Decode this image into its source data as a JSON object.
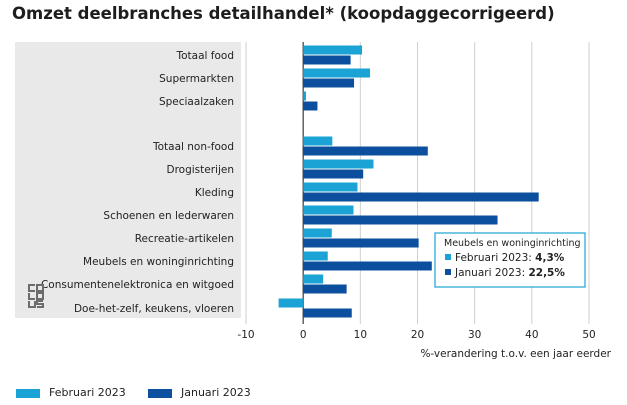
{
  "chart_data": {
    "type": "bar",
    "orientation": "horizontal",
    "title": "Omzet deelbranches detailhandel* (koopdaggecorrigeerd)",
    "xlabel": "%-verandering t.o.v. een jaar eerder",
    "ylabel": "",
    "xlim": [
      -10,
      50
    ],
    "xticks": [
      -10,
      0,
      10,
      20,
      30,
      40,
      50
    ],
    "grid": true,
    "categories": [
      "Totaal food",
      "Supermarkten",
      "Speciaalzaken",
      "",
      "Totaal non-food",
      "Drogisterijen",
      "Kleding",
      "Schoenen en lederwaren",
      "Recreatie-artikelen",
      "Meubels en woninginrichting",
      "Consumentenelektronica en witgoed",
      "Doe-het-zelf, keukens, vloeren"
    ],
    "series": [
      {
        "name": "Februari 2023",
        "color": "#1aa3d4",
        "values": [
          10.3,
          11.7,
          0.5,
          null,
          5.1,
          12.3,
          9.5,
          8.8,
          5.0,
          4.3,
          3.5,
          -4.3
        ]
      },
      {
        "name": "Januari 2023",
        "color": "#0c4f9e",
        "values": [
          8.3,
          8.9,
          2.5,
          null,
          21.8,
          10.5,
          41.2,
          34.0,
          20.2,
          22.5,
          7.6,
          8.5
        ]
      }
    ],
    "legend_position": "bottom-left",
    "tooltip": {
      "title": "Meubels en woninginrichting",
      "rows": [
        {
          "series": "Februari 2023",
          "value": "4,3%"
        },
        {
          "series": "Januari 2023",
          "value": "22,5%"
        }
      ]
    }
  },
  "logo": {
    "name": "cbs-logo",
    "text": "cbs"
  }
}
